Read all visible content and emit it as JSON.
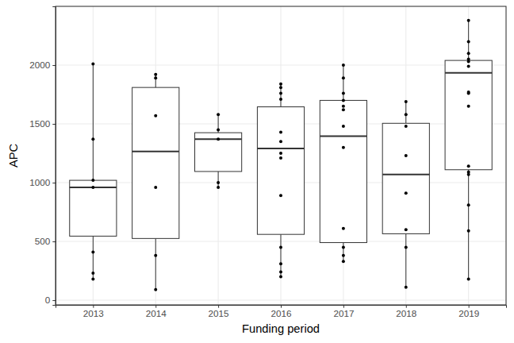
{
  "chart_data": {
    "type": "boxplot",
    "x_label": "Funding period",
    "y_label": "APC",
    "categories": [
      "2013",
      "2014",
      "2015",
      "2016",
      "2017",
      "2018",
      "2019"
    ],
    "boxes": [
      {
        "whisker_low": 180,
        "q1": 545,
        "median": 960,
        "q3": 1020,
        "whisker_high": 2010,
        "points": [
          2010,
          1370,
          1020,
          960,
          410,
          230,
          180
        ]
      },
      {
        "whisker_low": 90,
        "q1": 525,
        "median": 1265,
        "q3": 1810,
        "whisker_high": 1920,
        "points": [
          1920,
          1890,
          1570,
          960,
          380,
          90
        ]
      },
      {
        "whisker_low": 960,
        "q1": 1095,
        "median": 1370,
        "q3": 1425,
        "whisker_high": 1580,
        "points": [
          1580,
          1450,
          1370,
          1000,
          960
        ]
      },
      {
        "whisker_low": 200,
        "q1": 560,
        "median": 1290,
        "q3": 1645,
        "whisker_high": 1840,
        "points": [
          1840,
          1810,
          1760,
          1710,
          1430,
          1350,
          1250,
          1210,
          890,
          450,
          310,
          240,
          200
        ]
      },
      {
        "whisker_low": 330,
        "q1": 490,
        "median": 1395,
        "q3": 1700,
        "whisker_high": 2000,
        "points": [
          2000,
          1890,
          1760,
          1700,
          1650,
          1620,
          1480,
          1300,
          610,
          450,
          380,
          330
        ]
      },
      {
        "whisker_low": 110,
        "q1": 565,
        "median": 1070,
        "q3": 1505,
        "whisker_high": 1690,
        "points": [
          1690,
          1580,
          1480,
          1230,
          910,
          600,
          450,
          110
        ]
      },
      {
        "whisker_low": 180,
        "q1": 1110,
        "median": 1935,
        "q3": 2040,
        "whisker_high": 2380,
        "points": [
          2380,
          2200,
          2100,
          2050,
          2030,
          1990,
          1770,
          1760,
          1650,
          1140,
          1090,
          1070,
          810,
          590,
          180
        ]
      }
    ],
    "color": "#333333",
    "ylim": [
      -40,
      2500
    ],
    "yticks": [
      0,
      500,
      1000,
      1500,
      2000
    ],
    "grid": true
  }
}
